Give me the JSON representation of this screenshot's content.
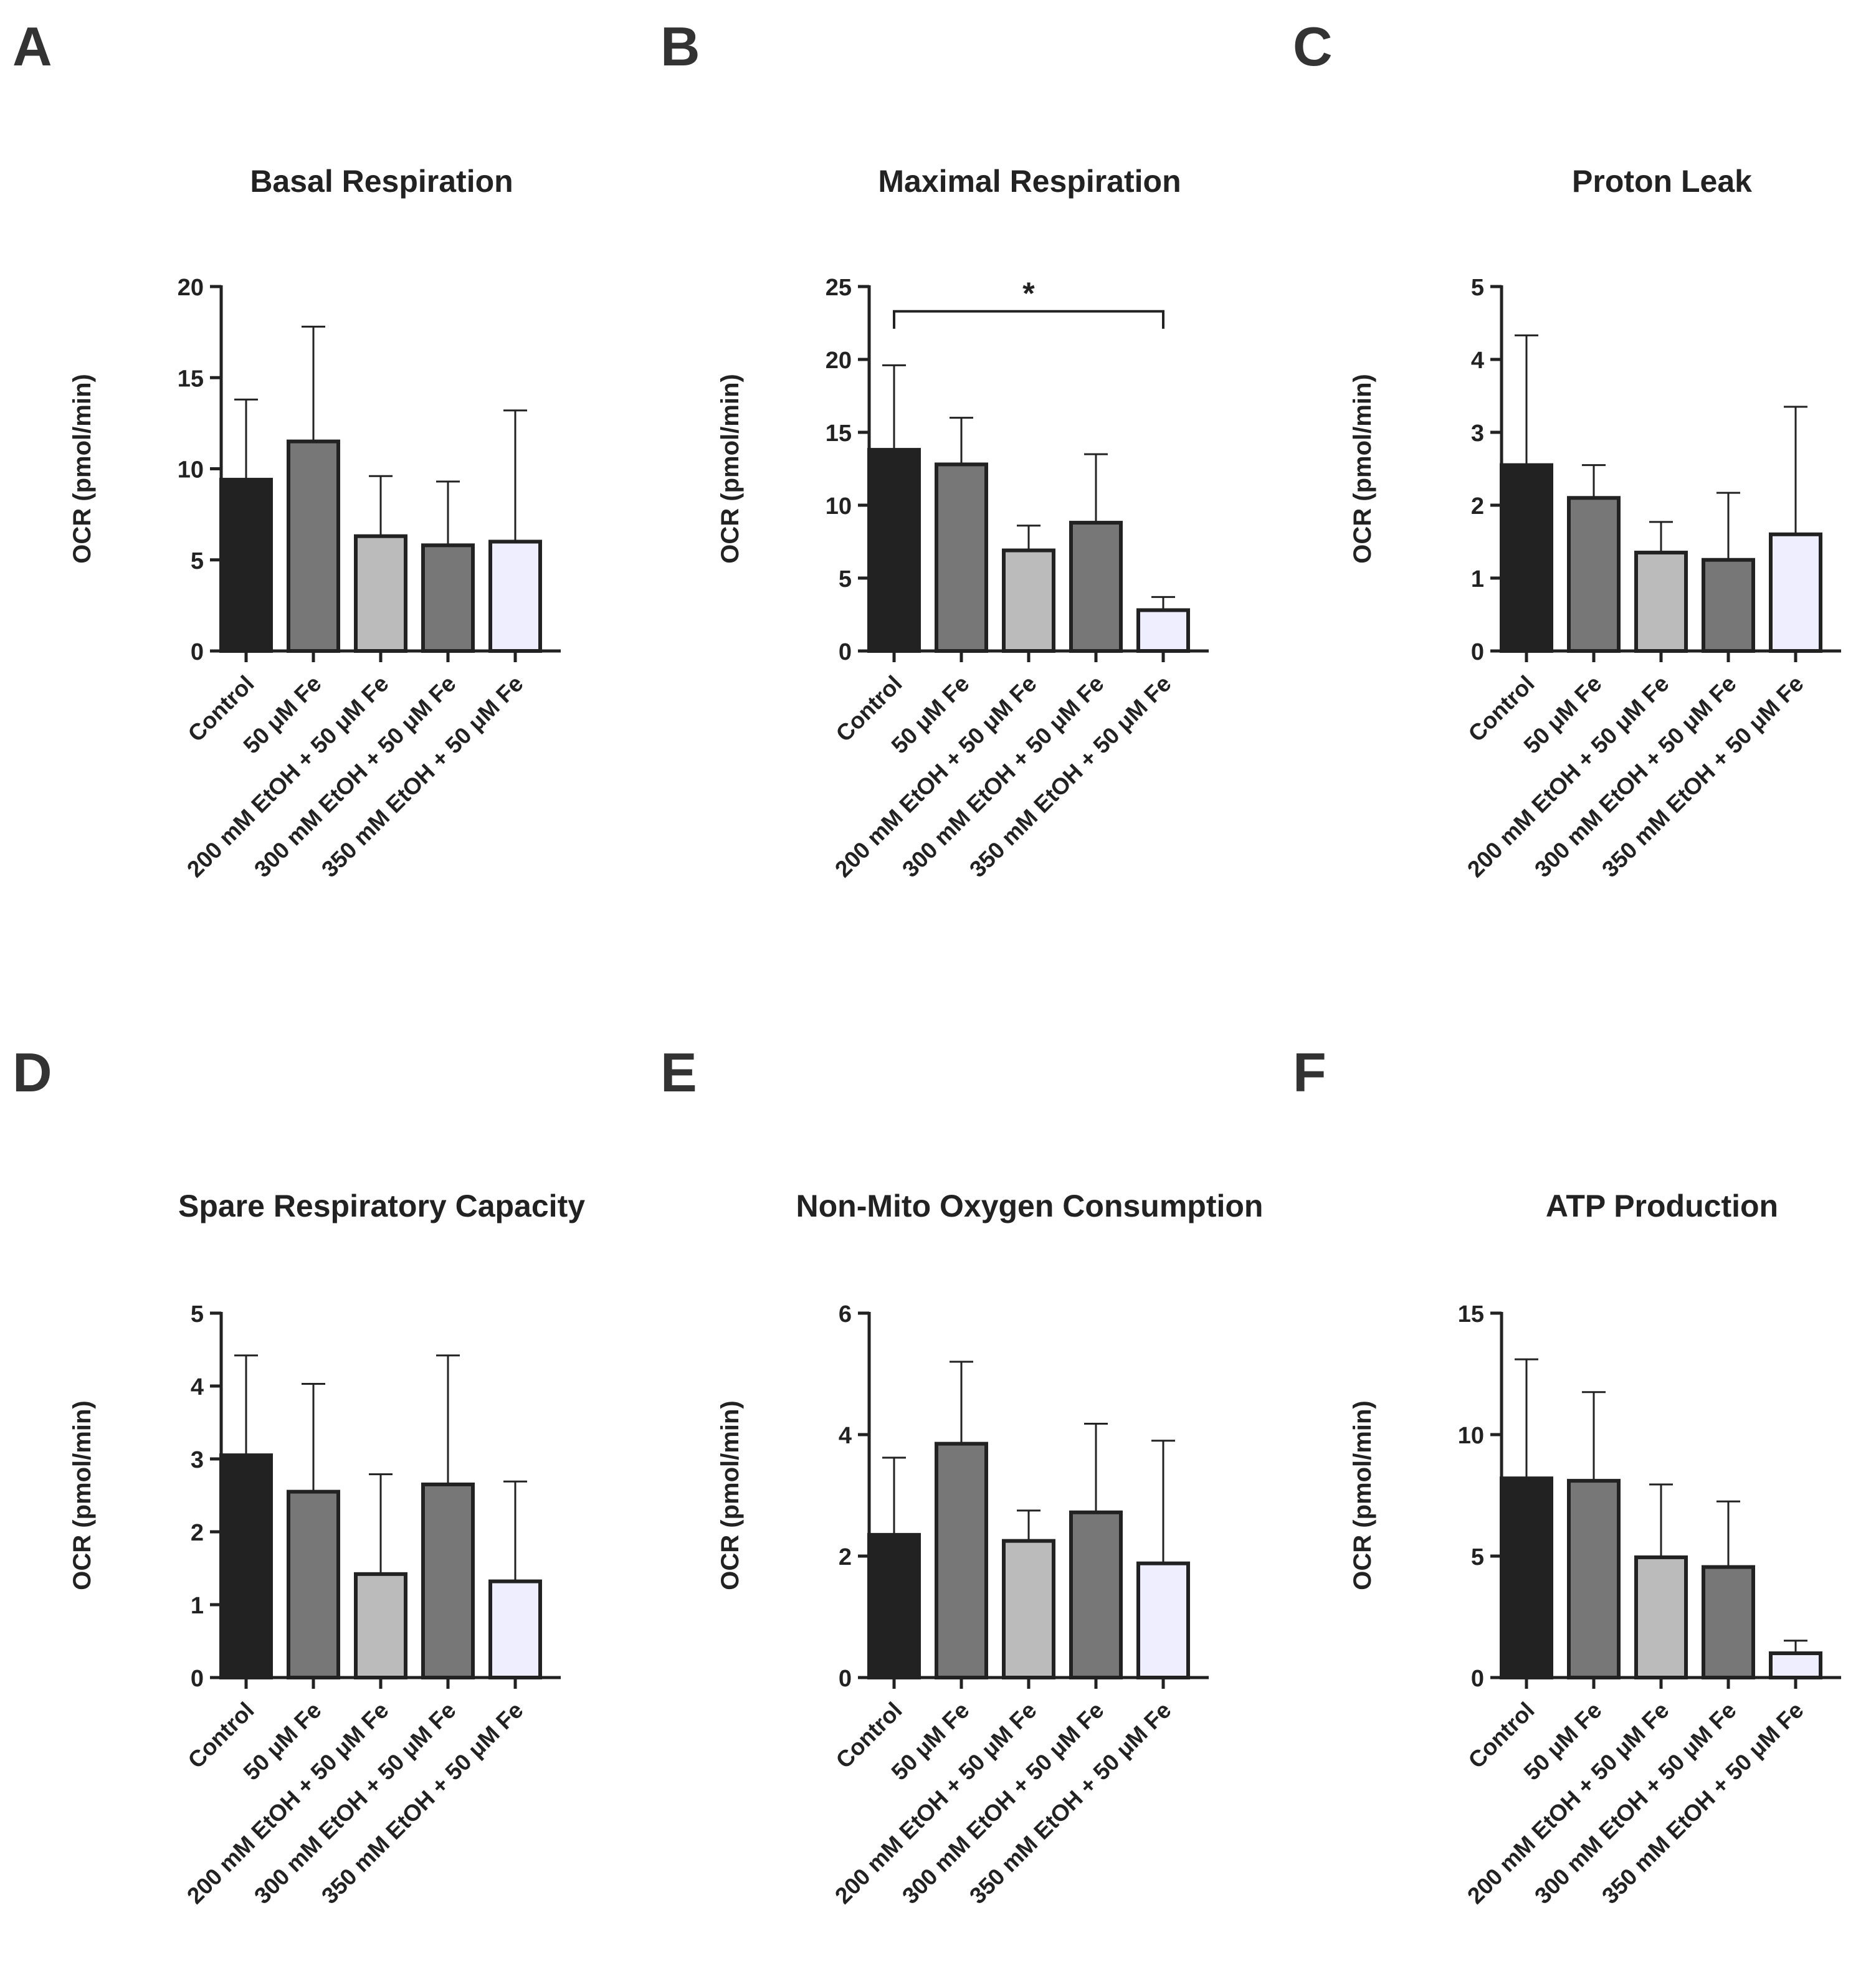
{
  "figure": {
    "categories": [
      "Control",
      "50 μM Fe",
      "200 mM EtOH + 50 μM Fe",
      "300 mM EtOH + 50 μM Fe",
      "350 mM EtOH + 50 μM Fe"
    ],
    "bar_colors": [
      "#222222",
      "#777777",
      "#bbbbbb",
      "#777777",
      "#eeeeff"
    ],
    "outline_color": "#222222"
  },
  "chart_data": [
    {
      "panel": "A",
      "type": "bar",
      "title": "Basal Respiration",
      "xlabel": "",
      "ylabel": "OCR (pmol/min)",
      "ylim": [
        0,
        20
      ],
      "yticks": [
        0,
        5,
        10,
        15,
        20
      ],
      "categories": [
        "Control",
        "50 μM Fe",
        "200 mM EtOH + 50 μM Fe",
        "300 mM EtOH + 50 μM Fe",
        "350 mM EtOH + 50 μM Fe"
      ],
      "values": [
        9.4,
        11.5,
        6.3,
        5.8,
        6.0
      ],
      "error_upper": [
        13.8,
        17.8,
        9.6,
        9.3,
        13.2
      ]
    },
    {
      "panel": "B",
      "type": "bar",
      "title": "Maximal Respiration",
      "xlabel": "",
      "ylabel": "OCR (pmol/min)",
      "ylim": [
        0,
        25
      ],
      "yticks": [
        0,
        5,
        10,
        15,
        20,
        25
      ],
      "categories": [
        "Control",
        "50 μM Fe",
        "200 mM EtOH + 50 μM Fe",
        "300 mM EtOH + 50 μM Fe",
        "350 mM EtOH + 50 μM Fe"
      ],
      "values": [
        13.8,
        12.8,
        6.9,
        8.8,
        2.8
      ],
      "error_upper": [
        19.6,
        16.0,
        8.6,
        13.5,
        3.7
      ],
      "significance": {
        "from": 0,
        "to": 4,
        "level": 23.3,
        "label": "*"
      }
    },
    {
      "panel": "C",
      "type": "bar",
      "title": "Proton Leak",
      "xlabel": "",
      "ylabel": "OCR (pmol/min)",
      "ylim": [
        0,
        5
      ],
      "yticks": [
        0,
        1,
        2,
        3,
        4,
        5
      ],
      "categories": [
        "Control",
        "50 μM Fe",
        "200 mM EtOH + 50 μM Fe",
        "300 mM EtOH + 50 μM Fe",
        "350 mM EtOH + 50 μM Fe"
      ],
      "values": [
        2.55,
        2.1,
        1.35,
        1.25,
        1.6
      ],
      "error_upper": [
        4.33,
        2.55,
        1.77,
        2.17,
        3.35
      ]
    },
    {
      "panel": "D",
      "type": "bar",
      "title": "Spare Respiratory Capacity",
      "xlabel": "",
      "ylabel": "OCR (pmol/min)",
      "ylim": [
        0,
        5
      ],
      "yticks": [
        0,
        1,
        2,
        3,
        4,
        5
      ],
      "categories": [
        "Control",
        "50 μM Fe",
        "200 mM EtOH + 50 μM Fe",
        "300 mM EtOH + 50 μM Fe",
        "350 mM EtOH + 50 μM Fe"
      ],
      "values": [
        3.05,
        2.55,
        1.42,
        2.65,
        1.32
      ],
      "error_upper": [
        4.42,
        4.03,
        2.79,
        4.42,
        2.69
      ]
    },
    {
      "panel": "E",
      "type": "bar",
      "title": "Non-Mito Oxygen Consumption",
      "xlabel": "",
      "ylabel": "OCR (pmol/min)",
      "ylim": [
        0,
        6
      ],
      "yticks": [
        0,
        2,
        4,
        6
      ],
      "categories": [
        "Control",
        "50 μM Fe",
        "200 mM EtOH + 50 μM Fe",
        "300 mM EtOH + 50 μM Fe",
        "350 mM EtOH + 50 μM Fe"
      ],
      "values": [
        2.35,
        3.85,
        2.25,
        2.72,
        1.88
      ],
      "error_upper": [
        3.62,
        5.2,
        2.75,
        4.18,
        3.9
      ]
    },
    {
      "panel": "F",
      "type": "bar",
      "title": "ATP Production",
      "xlabel": "",
      "ylabel": "OCR (pmol/min)",
      "ylim": [
        0,
        15
      ],
      "yticks": [
        0,
        5,
        10,
        15
      ],
      "categories": [
        "Control",
        "50 μM Fe",
        "200 mM EtOH + 50 μM Fe",
        "300 mM EtOH + 50 μM Fe",
        "350 mM EtOH + 50 μM Fe"
      ],
      "values": [
        8.2,
        8.1,
        4.95,
        4.55,
        1.0
      ],
      "error_upper": [
        13.1,
        11.75,
        7.95,
        7.25,
        1.52
      ]
    }
  ]
}
